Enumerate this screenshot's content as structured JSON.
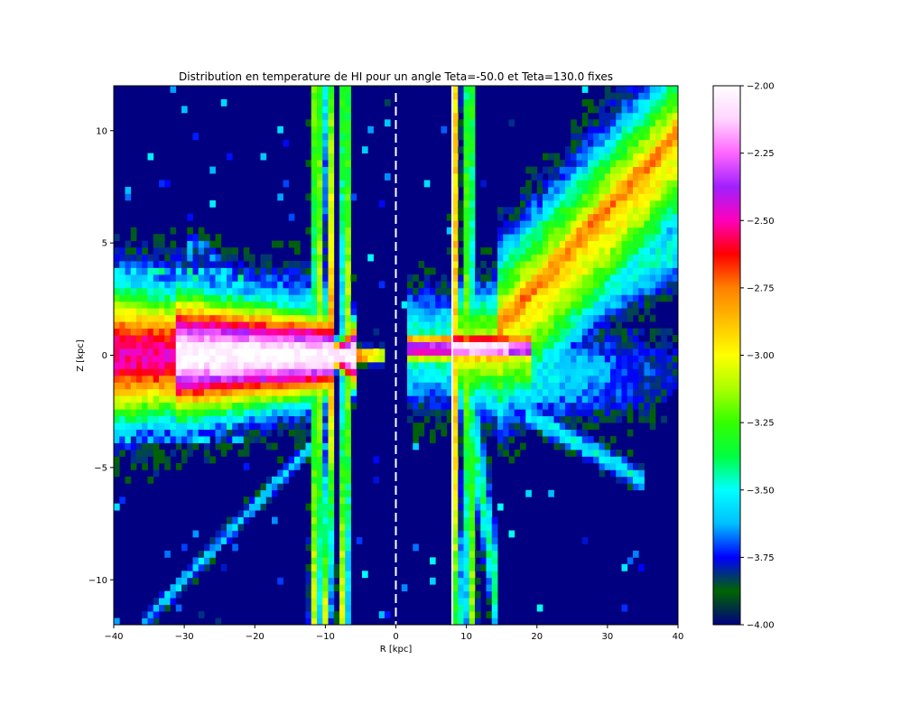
{
  "chart_data": {
    "type": "heatmap",
    "title": "Distribution en temperature de HI pour un angle Teta=-50.0 et Teta=130.0 fixes",
    "xlabel": "R [kpc]",
    "ylabel": "Z [kpc]",
    "xlim": [
      -40,
      40
    ],
    "ylim": [
      -12,
      12
    ],
    "xticks": [
      -40,
      -30,
      -20,
      -10,
      0,
      10,
      20,
      30,
      40
    ],
    "xtick_labels": [
      "−40",
      "−30",
      "−20",
      "−10",
      "0",
      "10",
      "20",
      "30",
      "40"
    ],
    "yticks": [
      -10,
      -5,
      0,
      5,
      10
    ],
    "ytick_labels": [
      "−10",
      "−5",
      "0",
      "5",
      "10"
    ],
    "colorbar": {
      "vmin": -4.0,
      "vmax": -2.0,
      "ticks": [
        -4.0,
        -3.75,
        -3.5,
        -3.25,
        -3.0,
        -2.75,
        -2.5,
        -2.25,
        -2.0
      ],
      "tick_labels": [
        "−4.00",
        "−3.75",
        "−3.50",
        "−3.25",
        "−3.00",
        "−2.75",
        "−2.50",
        "−2.25",
        "−2.00"
      ],
      "colormap": "gist_ncar-like",
      "colors": [
        "#000080",
        "#006400",
        "#0000ff",
        "#00bfff",
        "#00ffff",
        "#00ff40",
        "#33ff00",
        "#aaff00",
        "#ffff00",
        "#ffc000",
        "#ff8000",
        "#ff0000",
        "#ff00bb",
        "#a020ff",
        "#ff66ff",
        "#ffd4ff",
        "#ffffff"
      ]
    },
    "markers": {
      "dashed_line_R": 0,
      "solid_line_R": 8
    },
    "features": {
      "disk_plane_Z": 0,
      "vertical_bands_R": [
        -11,
        -9.3,
        -7,
        8.5,
        10.5
      ],
      "upper_right_diagonal_band": "R 15..40, Z 0..12",
      "left_disk_extent_R": [
        -40,
        -10
      ]
    }
  }
}
